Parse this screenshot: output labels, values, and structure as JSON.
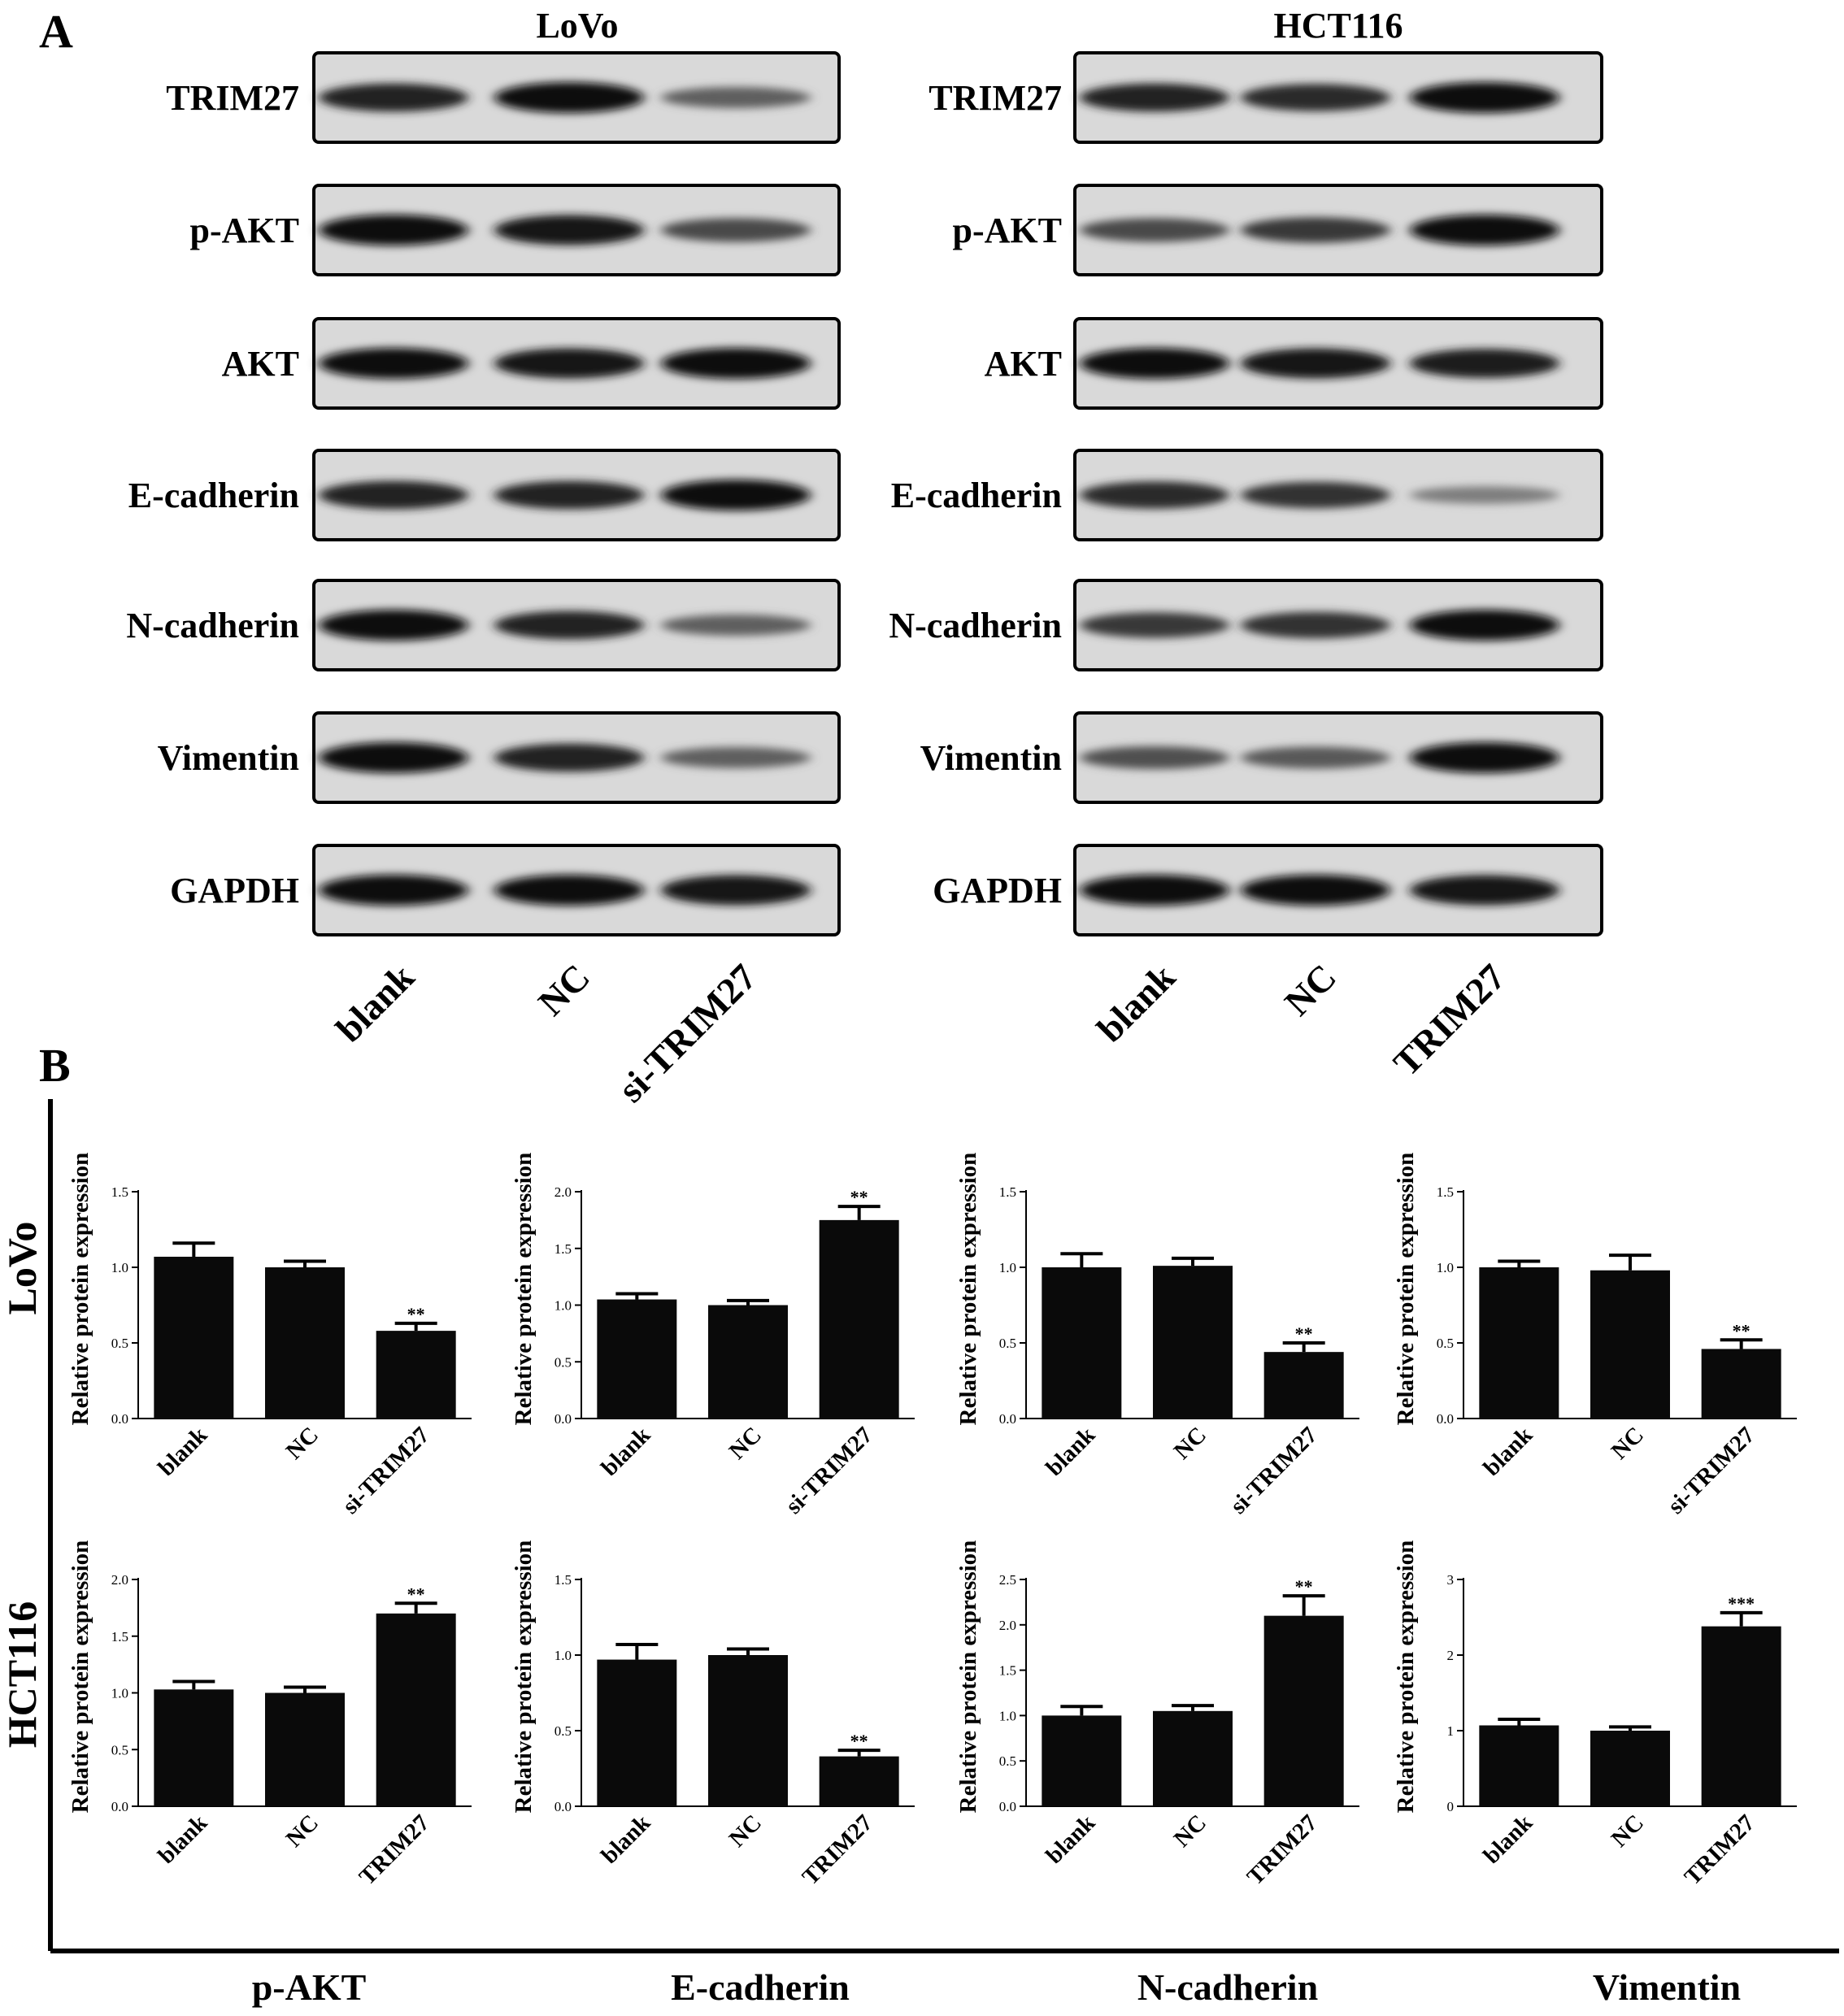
{
  "panel_a": {
    "letter": "A",
    "cells": [
      {
        "title": "LoVo",
        "lanes": [
          "blank",
          "NC",
          "si-TRIM27"
        ],
        "blots": [
          {
            "label": "TRIM27",
            "intensity": [
              0.85,
              1.0,
              0.45
            ]
          },
          {
            "label": "p-AKT",
            "intensity": [
              1.0,
              0.95,
              0.6
            ]
          },
          {
            "label": "AKT",
            "intensity": [
              1.0,
              0.95,
              1.0
            ]
          },
          {
            "label": "E-cadherin",
            "intensity": [
              0.85,
              0.85,
              1.0
            ]
          },
          {
            "label": "N-cadherin",
            "intensity": [
              1.0,
              0.85,
              0.45
            ]
          },
          {
            "label": "Vimentin",
            "intensity": [
              1.0,
              0.85,
              0.45
            ]
          },
          {
            "label": "GAPDH",
            "intensity": [
              1.0,
              1.0,
              0.95
            ]
          }
        ]
      },
      {
        "title": "HCT116",
        "lanes": [
          "blank",
          "NC",
          "TRIM27"
        ],
        "blots": [
          {
            "label": "TRIM27",
            "intensity": [
              0.85,
              0.8,
              1.0
            ]
          },
          {
            "label": "p-AKT",
            "intensity": [
              0.6,
              0.7,
              1.0
            ]
          },
          {
            "label": "AKT",
            "intensity": [
              1.0,
              0.95,
              0.9
            ]
          },
          {
            "label": "E-cadherin",
            "intensity": [
              0.8,
              0.75,
              0.25
            ]
          },
          {
            "label": "N-cadherin",
            "intensity": [
              0.7,
              0.75,
              1.0
            ]
          },
          {
            "label": "Vimentin",
            "intensity": [
              0.55,
              0.5,
              1.0
            ]
          },
          {
            "label": "GAPDH",
            "intensity": [
              1.0,
              1.0,
              0.95
            ]
          }
        ]
      }
    ]
  },
  "panel_b": {
    "letter": "B",
    "row_labels": [
      "LoVo",
      "HCT116"
    ],
    "col_labels": [
      "p-AKT",
      "E-cadherin",
      "N-cadherin",
      "Vimentin"
    ]
  },
  "chart_data": [
    {
      "type": "bar",
      "row": "LoVo",
      "protein": "p-AKT",
      "ylabel": "Relative protein expression",
      "categories": [
        "blank",
        "NC",
        "si-TRIM27"
      ],
      "values": [
        1.07,
        1.0,
        0.58
      ],
      "errors": [
        0.09,
        0.04,
        0.05
      ],
      "significance": [
        "",
        "",
        "**"
      ],
      "ylim": [
        0,
        1.5
      ],
      "yticks": [
        "0.0",
        "0.5",
        "1.0",
        "1.5"
      ]
    },
    {
      "type": "bar",
      "row": "LoVo",
      "protein": "E-cadherin",
      "ylabel": "Relative protein expression",
      "categories": [
        "blank",
        "NC",
        "si-TRIM27"
      ],
      "values": [
        1.05,
        1.0,
        1.75
      ],
      "errors": [
        0.05,
        0.04,
        0.12
      ],
      "significance": [
        "",
        "",
        "**"
      ],
      "ylim": [
        0,
        2.0
      ],
      "yticks": [
        "0.0",
        "0.5",
        "1.0",
        "1.5",
        "2.0"
      ]
    },
    {
      "type": "bar",
      "row": "LoVo",
      "protein": "N-cadherin",
      "ylabel": "Relative protein expression",
      "categories": [
        "blank",
        "NC",
        "si-TRIM27"
      ],
      "values": [
        1.0,
        1.01,
        0.44
      ],
      "errors": [
        0.09,
        0.05,
        0.06
      ],
      "significance": [
        "",
        "",
        "**"
      ],
      "ylim": [
        0,
        1.5
      ],
      "yticks": [
        "0.0",
        "0.5",
        "1.0",
        "1.5"
      ]
    },
    {
      "type": "bar",
      "row": "LoVo",
      "protein": "Vimentin",
      "ylabel": "Relative protein expression",
      "categories": [
        "blank",
        "NC",
        "si-TRIM27"
      ],
      "values": [
        1.0,
        0.98,
        0.46
      ],
      "errors": [
        0.04,
        0.1,
        0.06
      ],
      "significance": [
        "",
        "",
        "**"
      ],
      "ylim": [
        0,
        1.5
      ],
      "yticks": [
        "0.0",
        "0.5",
        "1.0",
        "1.5"
      ]
    },
    {
      "type": "bar",
      "row": "HCT116",
      "protein": "p-AKT",
      "ylabel": "Relative protein expression",
      "categories": [
        "blank",
        "NC",
        "TRIM27"
      ],
      "values": [
        1.03,
        1.0,
        1.7
      ],
      "errors": [
        0.07,
        0.05,
        0.09
      ],
      "significance": [
        "",
        "",
        "**"
      ],
      "ylim": [
        0,
        2.0
      ],
      "yticks": [
        "0.0",
        "0.5",
        "1.0",
        "1.5",
        "2.0"
      ]
    },
    {
      "type": "bar",
      "row": "HCT116",
      "protein": "E-cadherin",
      "ylabel": "Relative protein expression",
      "categories": [
        "blank",
        "NC",
        "TRIM27"
      ],
      "values": [
        0.97,
        1.0,
        0.33
      ],
      "errors": [
        0.1,
        0.04,
        0.04
      ],
      "significance": [
        "",
        "",
        "**"
      ],
      "ylim": [
        0,
        1.5
      ],
      "yticks": [
        "0.0",
        "0.5",
        "1.0",
        "1.5"
      ]
    },
    {
      "type": "bar",
      "row": "HCT116",
      "protein": "N-cadherin",
      "ylabel": "Relative protein expression",
      "categories": [
        "blank",
        "NC",
        "TRIM27"
      ],
      "values": [
        1.0,
        1.05,
        2.1
      ],
      "errors": [
        0.1,
        0.06,
        0.22
      ],
      "significance": [
        "",
        "",
        "**"
      ],
      "ylim": [
        0,
        2.5
      ],
      "yticks": [
        "0.0",
        "0.5",
        "1.0",
        "1.5",
        "2.0",
        "2.5"
      ]
    },
    {
      "type": "bar",
      "row": "HCT116",
      "protein": "Vimentin",
      "ylabel": "Relative protein expression",
      "categories": [
        "blank",
        "NC",
        "TRIM27"
      ],
      "values": [
        1.07,
        1.0,
        2.38
      ],
      "errors": [
        0.08,
        0.05,
        0.18
      ],
      "significance": [
        "",
        "",
        "***"
      ],
      "ylim": [
        0,
        3
      ],
      "yticks": [
        "0",
        "1",
        "2",
        "3"
      ]
    }
  ]
}
